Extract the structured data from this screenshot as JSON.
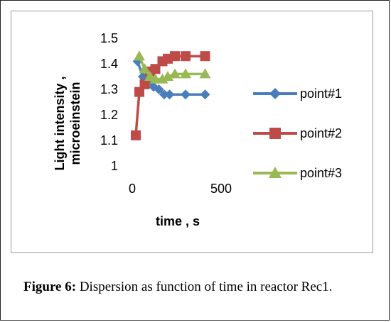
{
  "chart_data": {
    "type": "line",
    "xlabel": "time , s",
    "ylabel_line1": "Light intensity ,",
    "ylabel_line2": "microeinstein",
    "xlim": [
      0,
      500
    ],
    "ylim": [
      1,
      1.5
    ],
    "xticks": [
      0,
      500
    ],
    "yticks": [
      1,
      1.1,
      1.2,
      1.3,
      1.4,
      1.5
    ],
    "ytick_labels": [
      "1",
      "1.1",
      "1.2",
      "1.3",
      "1.4",
      "1.5"
    ],
    "xtick_labels": [
      "0",
      "500"
    ],
    "grid": false,
    "legend_position": "right",
    "series": [
      {
        "name": "point#1",
        "color": "#4a7ebb",
        "marker": "diamond",
        "x": [
          30,
          60,
          90,
          120,
          150,
          180,
          210,
          300,
          410
        ],
        "y": [
          1.41,
          1.35,
          1.33,
          1.31,
          1.3,
          1.28,
          1.28,
          1.28,
          1.28
        ]
      },
      {
        "name": "point#2",
        "color": "#be4b48",
        "marker": "square",
        "x": [
          20,
          40,
          70,
          100,
          130,
          170,
          200,
          240,
          300,
          410
        ],
        "y": [
          1.12,
          1.29,
          1.32,
          1.37,
          1.38,
          1.41,
          1.42,
          1.43,
          1.43,
          1.43
        ]
      },
      {
        "name": "point#3",
        "color": "#98b954",
        "marker": "triangle",
        "x": [
          40,
          70,
          100,
          130,
          170,
          200,
          240,
          300,
          410
        ],
        "y": [
          1.43,
          1.38,
          1.35,
          1.34,
          1.34,
          1.35,
          1.36,
          1.36,
          1.36
        ]
      }
    ]
  },
  "caption": {
    "label": "Figure 6:",
    "text": " Dispersion as function of time in reactor Rec1."
  }
}
